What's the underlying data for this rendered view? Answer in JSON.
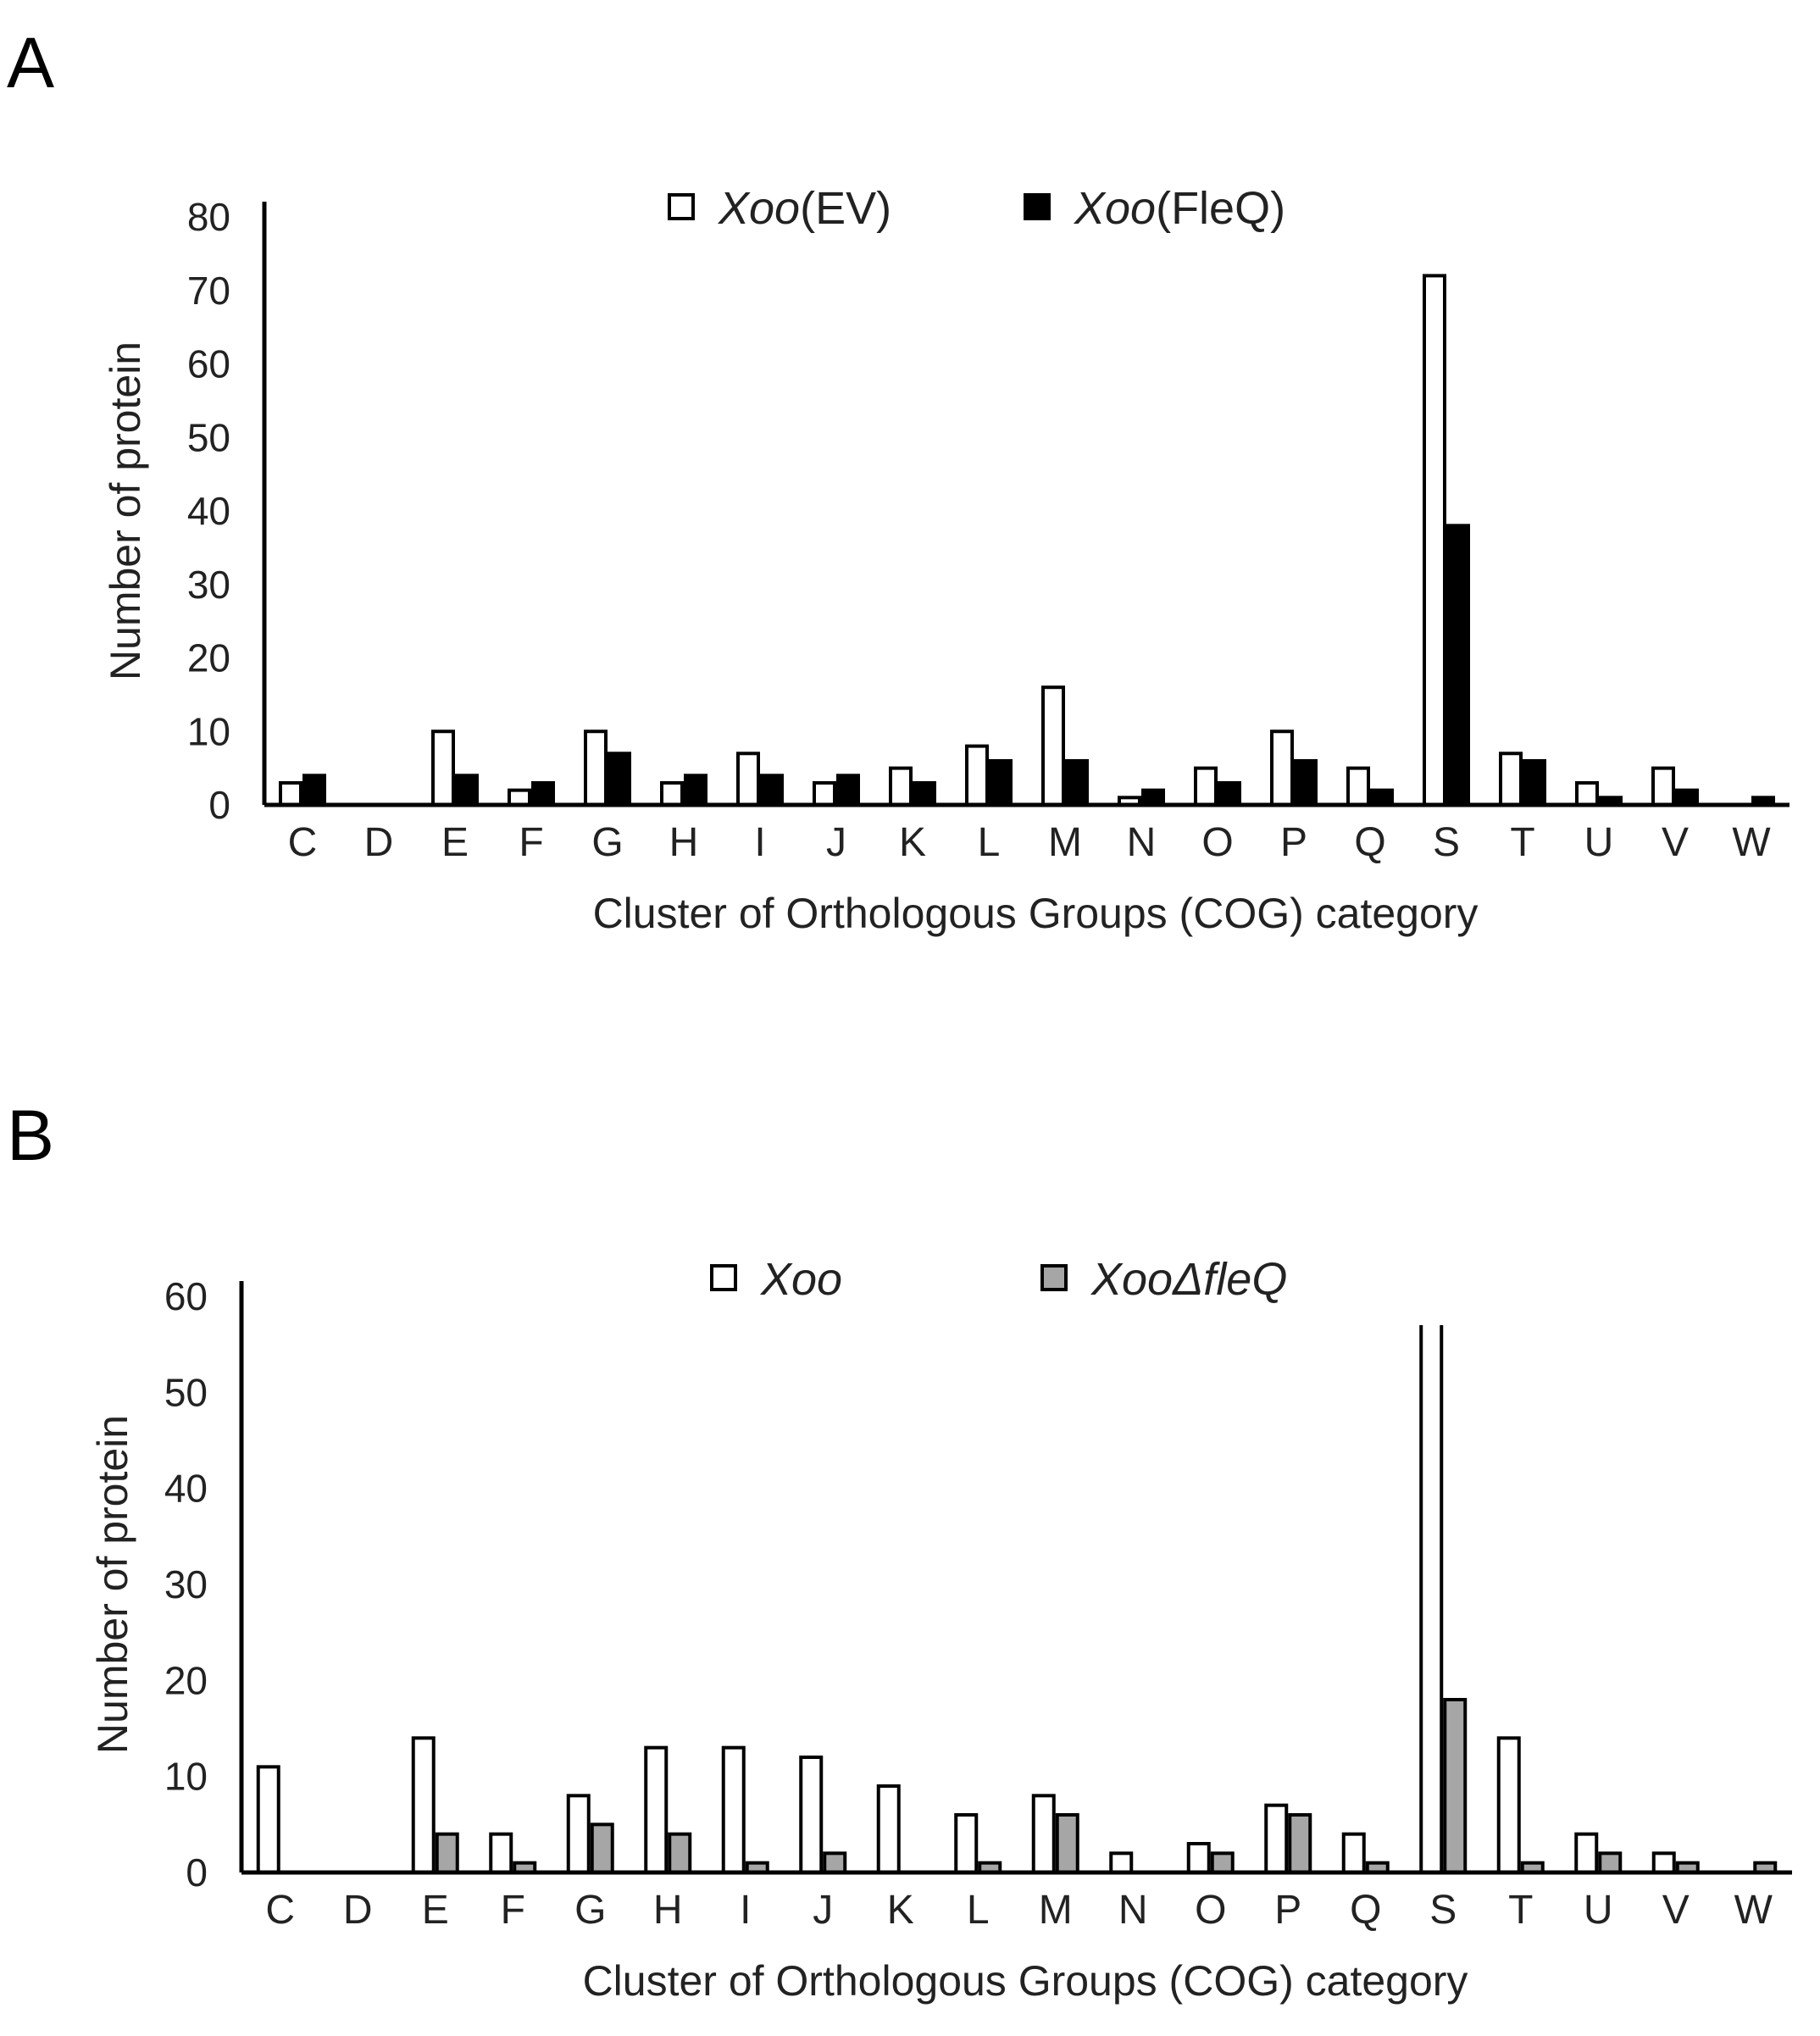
{
  "panels": [
    "A",
    "B"
  ],
  "chart_data": [
    {
      "type": "bar",
      "panel": "A",
      "categories": [
        "C",
        "D",
        "E",
        "F",
        "G",
        "H",
        "I",
        "J",
        "K",
        "L",
        "M",
        "N",
        "O",
        "P",
        "Q",
        "S",
        "T",
        "U",
        "V",
        "W"
      ],
      "series": [
        {
          "name": "Xoo",
          "name_suffix": "(EV)",
          "fill": "#ffffff",
          "values": [
            3,
            0,
            10,
            2,
            10,
            3,
            7,
            3,
            5,
            8,
            16,
            1,
            5,
            10,
            5,
            72,
            7,
            3,
            5,
            0
          ]
        },
        {
          "name": "Xoo",
          "name_suffix": "(FleQ)",
          "fill": "#000000",
          "values": [
            4,
            0,
            4,
            3,
            7,
            4,
            4,
            4,
            3,
            6,
            6,
            2,
            3,
            6,
            2,
            38,
            6,
            1,
            2,
            1
          ]
        }
      ],
      "yticks": [
        "0",
        "10",
        "20",
        "30",
        "40",
        "50",
        "60",
        "70",
        "80"
      ],
      "ylim": [
        0,
        80
      ],
      "xlabel": "Cluster of Orthologous Groups (COG) category",
      "ylabel": "Number of protein",
      "legend_position": "top-center",
      "grid": false
    },
    {
      "type": "bar",
      "panel": "B",
      "categories": [
        "C",
        "D",
        "E",
        "F",
        "G",
        "H",
        "I",
        "J",
        "K",
        "L",
        "M",
        "N",
        "O",
        "P",
        "Q",
        "S",
        "T",
        "U",
        "V",
        "W"
      ],
      "series": [
        {
          "name": "Xoo",
          "name_suffix": "",
          "fill": "#ffffff",
          "values": [
            11,
            0,
            14,
            4,
            8,
            13,
            13,
            12,
            9,
            6,
            8,
            2,
            3,
            7,
            4,
            60,
            14,
            4,
            2,
            0
          ]
        },
        {
          "name": "XooΔfleQ",
          "name_suffix": "",
          "fill": "#a6a6a6",
          "values": [
            0,
            0,
            4,
            1,
            5,
            4,
            1,
            2,
            0,
            1,
            6,
            0,
            2,
            6,
            1,
            18,
            1,
            2,
            1,
            1
          ]
        }
      ],
      "yticks": [
        "0",
        "10",
        "20",
        "30",
        "40",
        "50",
        "60"
      ],
      "ylim": [
        0,
        60
      ],
      "xlabel": "Cluster of Orthologous Groups (COG) category",
      "ylabel": "Number of protein",
      "legend_position": "top-center",
      "grid": false,
      "note": "S bar for Xoo extends beyond the axis maximum"
    }
  ]
}
